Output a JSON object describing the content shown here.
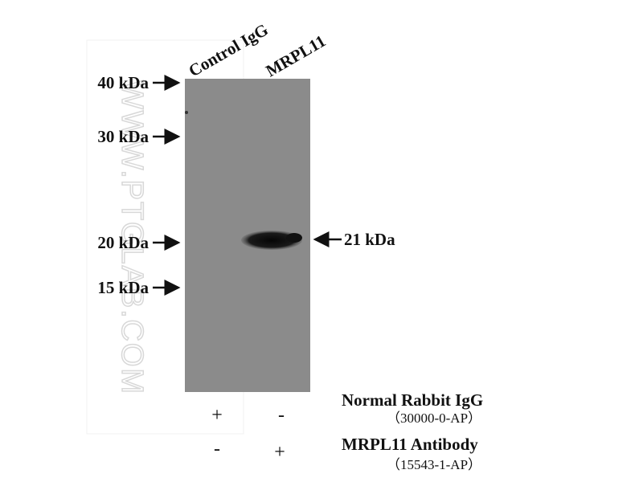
{
  "lanes": [
    "Control IgG",
    "MRPL11"
  ],
  "markers": [
    "40 kDa",
    "30 kDa",
    "20 kDa",
    "15 kDa"
  ],
  "band_label": "21 kDa",
  "watermark": "WWW.PTGLAB.COM",
  "conditions": [
    {
      "name": "Normal Rabbit IgG",
      "catalog": "（30000-0-AP）",
      "signs": [
        "+",
        "-"
      ]
    },
    {
      "name": "MRPL11 Antibody",
      "catalog": "（15543-1-AP）",
      "signs": [
        "-",
        "+"
      ]
    }
  ]
}
